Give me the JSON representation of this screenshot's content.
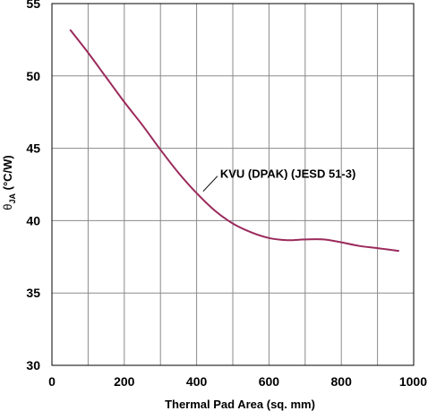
{
  "chart_data": {
    "type": "line",
    "xlabel": "Thermal Pad Area (sq. mm)",
    "ylabel_symbol": "θ",
    "ylabel_subscript": "JA",
    "ylabel_unit": " (°C/W)",
    "xlim": [
      0,
      1000
    ],
    "ylim": [
      30,
      55
    ],
    "xticks": [
      0,
      200,
      400,
      600,
      800,
      1000
    ],
    "yticks": [
      30,
      35,
      40,
      45,
      50,
      55
    ],
    "grid": true,
    "line_color": "#9b2a5c",
    "series": [
      {
        "x": [
          50,
          100,
          150,
          200,
          250,
          300,
          350,
          400,
          450,
          500,
          550,
          600,
          650,
          700,
          750,
          800,
          850,
          900,
          960
        ],
        "y": [
          53.2,
          51.6,
          49.9,
          48.2,
          46.6,
          44.9,
          43.3,
          41.9,
          40.7,
          39.8,
          39.2,
          38.8,
          38.65,
          38.7,
          38.7,
          38.5,
          38.25,
          38.1,
          37.9
        ]
      }
    ],
    "annotations": [
      {
        "text": "KVU (DPAK) (JESD 51-3)",
        "x": 418,
        "y": 41.9
      }
    ]
  }
}
